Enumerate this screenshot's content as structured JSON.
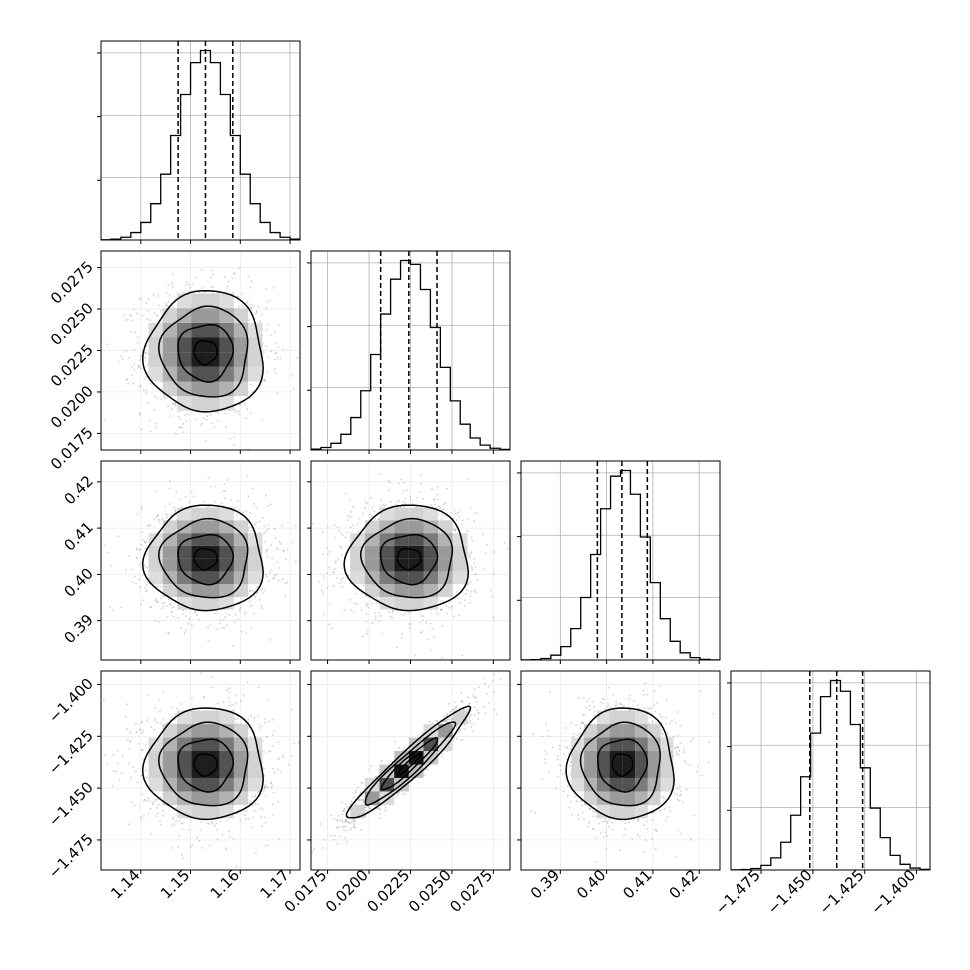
{
  "chart_data": {
    "type": "corner",
    "grid": true,
    "parameters": [
      {
        "index": 0,
        "range": [
          1.132,
          1.172
        ],
        "ticks": [
          "1.14",
          "1.15",
          "1.16",
          "1.17"
        ],
        "tick_values": [
          1.14,
          1.15,
          1.16,
          1.17
        ],
        "quantiles": [
          1.1475,
          1.153,
          1.1585
        ],
        "mean": 1.153,
        "sd": 0.0055
      },
      {
        "index": 1,
        "range": [
          0.0165,
          0.0285
        ],
        "ticks": [
          "0.0175",
          "0.0200",
          "0.0225",
          "0.0250",
          "0.0275"
        ],
        "tick_values": [
          0.0175,
          0.02,
          0.0225,
          0.025,
          0.0275
        ],
        "quantiles": [
          0.0207,
          0.0224,
          0.0241
        ],
        "mean": 0.0224,
        "sd": 0.0017
      },
      {
        "index": 2,
        "range": [
          0.3815,
          0.4245
        ],
        "ticks": [
          "0.39",
          "0.40",
          "0.41",
          "0.42"
        ],
        "tick_values": [
          0.39,
          0.4,
          0.41,
          0.42
        ],
        "quantiles": [
          0.398,
          0.4033,
          0.4088
        ],
        "mean": 0.4034,
        "sd": 0.0053
      },
      {
        "index": 3,
        "range": [
          -1.4895,
          -1.3935
        ],
        "ticks": [
          "−1.475",
          "−1.450",
          "−1.425",
          "−1.400"
        ],
        "tick_values": [
          -1.475,
          -1.45,
          -1.425,
          -1.4
        ],
        "quantiles": [
          -1.4515,
          -1.4385,
          -1.426
        ],
        "mean": -1.4386,
        "sd": 0.0125
      }
    ],
    "correlations": [
      {
        "pair": [
          1,
          0
        ],
        "r": 0.0
      },
      {
        "pair": [
          2,
          0
        ],
        "r": 0.0
      },
      {
        "pair": [
          2,
          1
        ],
        "r": 0.0
      },
      {
        "pair": [
          3,
          0
        ],
        "r": 0.0
      },
      {
        "pair": [
          3,
          1
        ],
        "r": 0.95
      },
      {
        "pair": [
          3,
          2
        ],
        "r": 0.0
      }
    ],
    "histogram_bins": 20,
    "contour_levels": 4,
    "colors": {
      "line": "#000000",
      "scatter": "#9a9a9a",
      "grid": "#b0b0b0",
      "density_max": "#000000"
    }
  }
}
